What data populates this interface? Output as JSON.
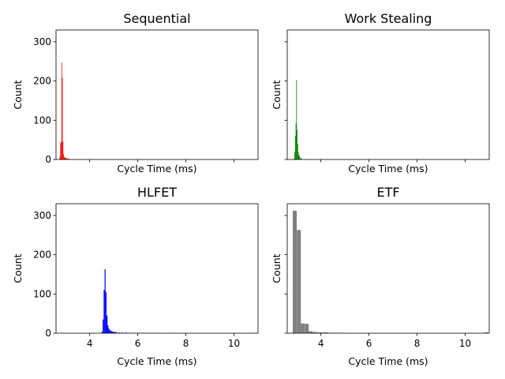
{
  "chart_data": [
    {
      "type": "bar",
      "title": "Sequential",
      "xlabel": "Cycle Time (ms)",
      "ylabel": "Count",
      "xlim": [
        2.6,
        11.0
      ],
      "ylim": [
        0,
        330
      ],
      "xticks": [
        4,
        6,
        8,
        10
      ],
      "yticks": [
        0,
        100,
        200,
        300
      ],
      "show_xtick_labels": false,
      "show_ytick_labels": true,
      "color": "#ff0000",
      "bin_width": 0.025,
      "bins": [
        [
          2.75,
          8
        ],
        [
          2.775,
          42
        ],
        [
          2.8,
          45
        ],
        [
          2.825,
          247
        ],
        [
          2.85,
          208
        ],
        [
          2.875,
          45
        ],
        [
          2.9,
          14
        ],
        [
          2.925,
          6
        ],
        [
          2.95,
          5
        ],
        [
          2.975,
          4
        ],
        [
          3.0,
          4
        ],
        [
          3.025,
          3
        ],
        [
          3.05,
          3
        ],
        [
          3.1,
          2
        ],
        [
          3.15,
          2
        ],
        [
          3.2,
          1
        ],
        [
          3.3,
          1
        ],
        [
          3.4,
          1
        ],
        [
          3.6,
          1
        ]
      ]
    },
    {
      "type": "bar",
      "title": "Work Stealing",
      "xlabel": "Cycle Time (ms)",
      "ylabel": "Count",
      "xlim": [
        2.6,
        11.0
      ],
      "ylim": [
        0,
        330
      ],
      "xticks": [
        4,
        6,
        8,
        10
      ],
      "yticks": [
        0,
        100,
        200,
        300
      ],
      "show_xtick_labels": false,
      "show_ytick_labels": false,
      "color": "#008000",
      "bin_width": 0.025,
      "bins": [
        [
          2.875,
          3
        ],
        [
          2.9,
          20
        ],
        [
          2.925,
          60
        ],
        [
          2.95,
          92
        ],
        [
          2.975,
          203
        ],
        [
          3.0,
          75
        ],
        [
          3.025,
          40
        ],
        [
          3.05,
          20
        ],
        [
          3.075,
          12
        ],
        [
          3.1,
          8
        ],
        [
          3.125,
          5
        ],
        [
          3.15,
          3
        ],
        [
          3.2,
          2
        ],
        [
          3.3,
          1
        ],
        [
          3.4,
          1
        ]
      ]
    },
    {
      "type": "bar",
      "title": "HLFET",
      "xlabel": "Cycle Time (ms)",
      "ylabel": "Count",
      "xlim": [
        2.6,
        11.0
      ],
      "ylim": [
        0,
        330
      ],
      "xticks": [
        4,
        6,
        8,
        10
      ],
      "yticks": [
        0,
        100,
        200,
        300
      ],
      "show_xtick_labels": true,
      "show_ytick_labels": true,
      "color": "#0000ff",
      "bin_width": 0.04,
      "bins": [
        [
          4.5,
          4
        ],
        [
          4.54,
          35
        ],
        [
          4.58,
          110
        ],
        [
          4.62,
          163
        ],
        [
          4.66,
          105
        ],
        [
          4.7,
          45
        ],
        [
          4.74,
          20
        ],
        [
          4.78,
          12
        ],
        [
          4.82,
          8
        ],
        [
          4.86,
          6
        ],
        [
          4.9,
          5
        ],
        [
          4.94,
          4
        ],
        [
          4.98,
          3
        ],
        [
          5.02,
          3
        ],
        [
          5.06,
          3
        ],
        [
          5.1,
          2
        ],
        [
          5.2,
          2
        ],
        [
          5.3,
          2
        ],
        [
          5.4,
          1
        ],
        [
          5.5,
          2
        ],
        [
          5.6,
          1
        ],
        [
          5.7,
          1
        ],
        [
          5.8,
          1
        ],
        [
          6.0,
          1
        ],
        [
          6.2,
          1
        ],
        [
          6.5,
          1
        ],
        [
          6.8,
          1
        ],
        [
          7.5,
          1
        ],
        [
          10.6,
          1
        ]
      ]
    },
    {
      "type": "bar",
      "title": "ETF",
      "xlabel": "Cycle Time (ms)",
      "ylabel": "Count",
      "xlim": [
        2.6,
        11.0
      ],
      "ylim": [
        0,
        330
      ],
      "xticks": [
        4,
        6,
        8,
        10
      ],
      "yticks": [
        0,
        100,
        200,
        300
      ],
      "show_xtick_labels": true,
      "show_ytick_labels": false,
      "color": "#808080",
      "bin_width": 0.165,
      "bins": [
        [
          2.83,
          312
        ],
        [
          3.0,
          263
        ],
        [
          3.16,
          25
        ],
        [
          3.33,
          24
        ],
        [
          3.49,
          5
        ],
        [
          3.66,
          3
        ],
        [
          3.82,
          2
        ],
        [
          3.99,
          2
        ],
        [
          4.15,
          2
        ],
        [
          4.32,
          1
        ],
        [
          4.48,
          1
        ],
        [
          4.81,
          1
        ],
        [
          10.8,
          2
        ]
      ]
    }
  ]
}
